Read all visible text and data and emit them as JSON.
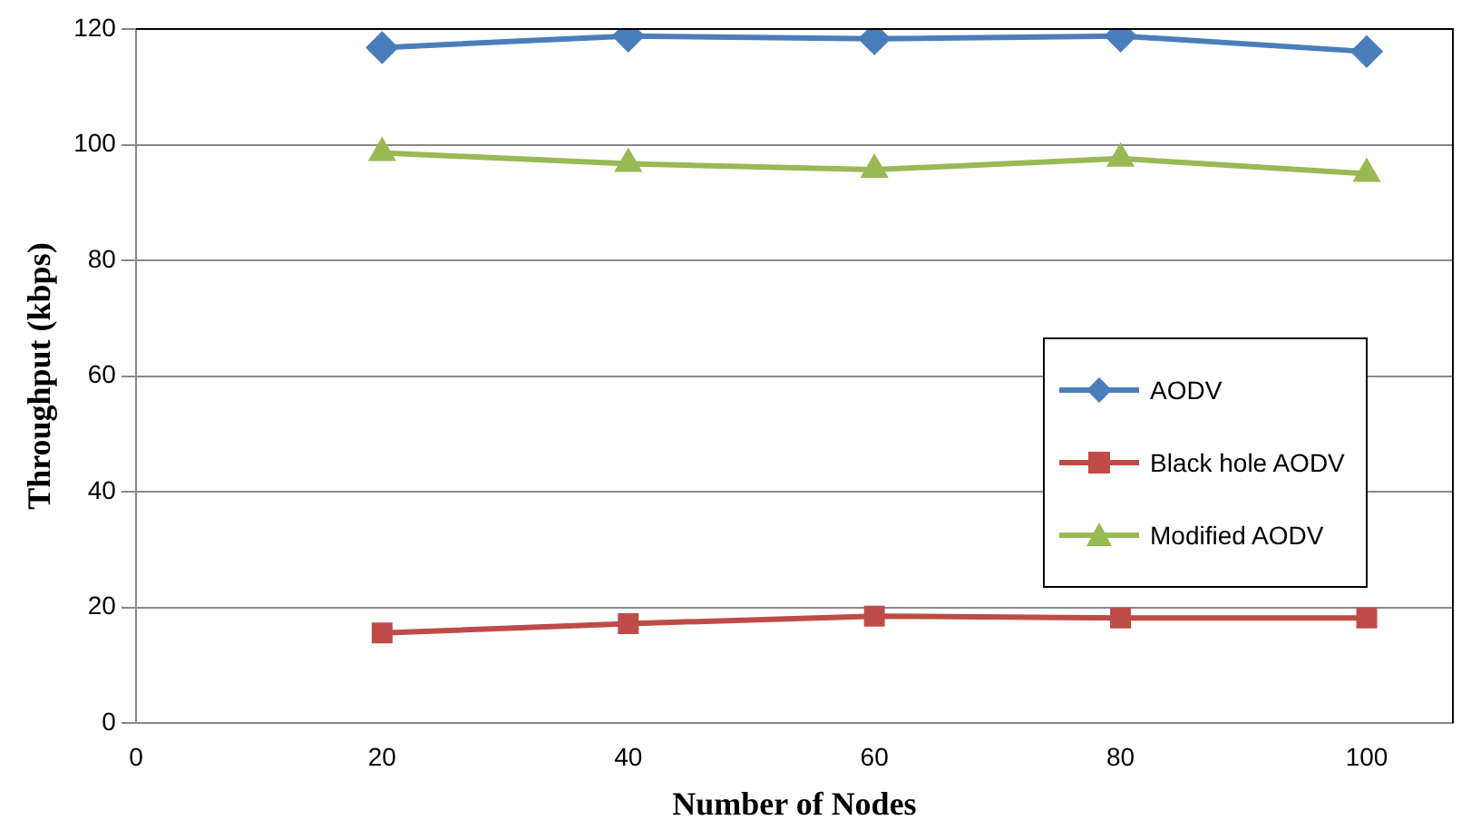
{
  "chart_data": {
    "type": "line",
    "xlabel": "Number of Nodes",
    "ylabel": "Throughput (kbps)",
    "x": [
      20,
      40,
      60,
      80,
      100
    ],
    "xlim": [
      0,
      107
    ],
    "xticks": [
      0,
      20,
      40,
      60,
      80,
      100
    ],
    "ylim": [
      0,
      120
    ],
    "yticks": [
      0,
      20,
      40,
      60,
      80,
      100,
      120
    ],
    "grid": "y",
    "legend": "right",
    "series": [
      {
        "name": "AODV",
        "color": "#4a7ebb",
        "marker": "diamond",
        "values": [
          116.8,
          118.8,
          118.3,
          118.8,
          116.1
        ]
      },
      {
        "name": "Black hole AODV",
        "color": "#be4b48",
        "marker": "square",
        "values": [
          15.6,
          17.2,
          18.5,
          18.2,
          18.2
        ]
      },
      {
        "name": "Modified AODV",
        "color": "#98b954",
        "marker": "triangle",
        "values": [
          98.6,
          96.7,
          95.7,
          97.6,
          95.0
        ]
      }
    ]
  }
}
